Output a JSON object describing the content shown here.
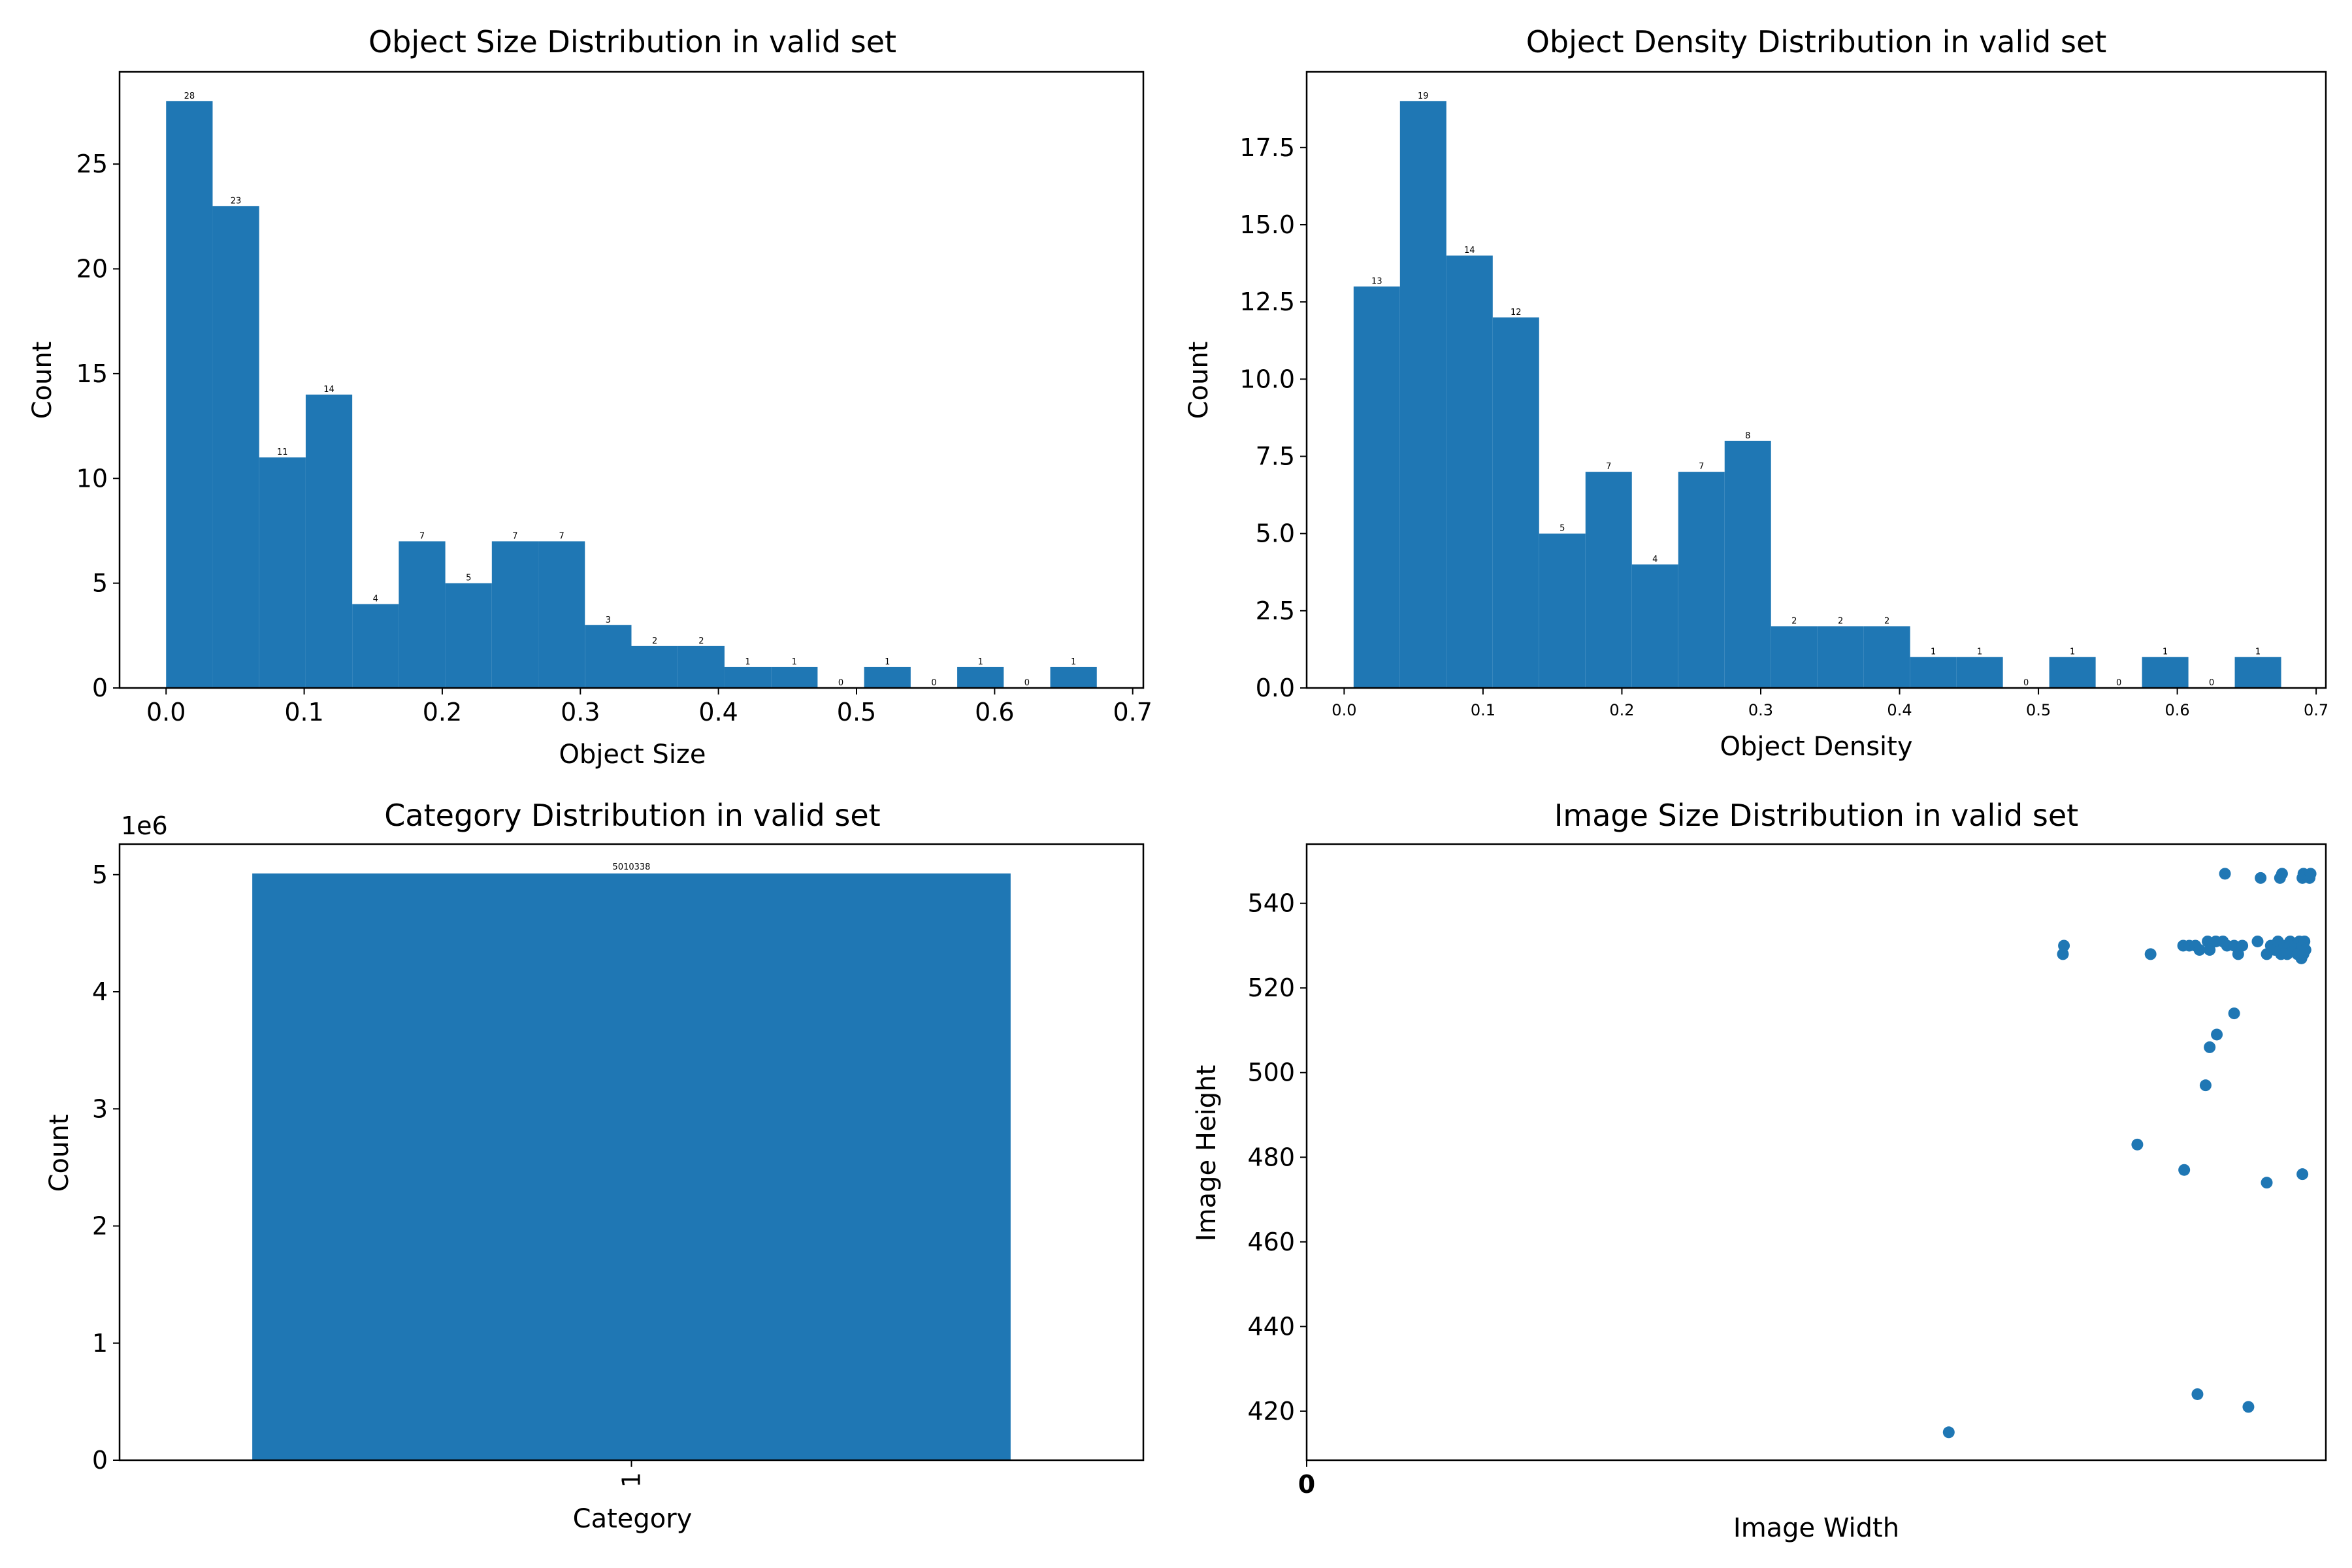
{
  "figure": {
    "background": "#ffffff",
    "bar_color": "#1f77b4"
  },
  "chart_data": [
    {
      "type": "bar",
      "title": "Object Size Distribution in valid set",
      "xlabel": "Object Size",
      "ylabel": "Count",
      "bin_start": 0.0,
      "bin_width": 0.0337,
      "values": [
        28,
        23,
        11,
        14,
        4,
        7,
        5,
        7,
        7,
        3,
        2,
        2,
        1,
        1,
        0,
        1,
        0,
        1,
        0,
        1
      ],
      "data_labels": [
        "28",
        "23",
        "11",
        "14",
        "4",
        "7",
        "5",
        "7",
        "7",
        "3",
        "2",
        "2",
        "1",
        "1",
        "0",
        "1",
        "0",
        "1",
        "0",
        "1"
      ],
      "xlim": [
        -0.0337,
        0.7077
      ],
      "ylim": [
        0,
        29.4
      ],
      "xticks": [
        0.0,
        0.1,
        0.2,
        0.3,
        0.4,
        0.5,
        0.6,
        0.7
      ],
      "xtick_labels": [
        "0.0",
        "0.1",
        "0.2",
        "0.3",
        "0.4",
        "0.5",
        "0.6",
        "0.7"
      ],
      "yticks": [
        0,
        5,
        10,
        15,
        20,
        25
      ],
      "ytick_labels": [
        "0",
        "5",
        "10",
        "15",
        "20",
        "25"
      ],
      "grid": false
    },
    {
      "type": "bar",
      "title": "Object Density Distribution in valid set",
      "xlabel": "Object Density",
      "ylabel": "Count",
      "bin_start": 0.0068,
      "bin_width": 0.0334,
      "values": [
        13,
        19,
        14,
        12,
        5,
        7,
        4,
        7,
        8,
        2,
        2,
        2,
        1,
        1,
        0,
        1,
        0,
        1,
        0,
        1
      ],
      "data_labels": [
        "13",
        "19",
        "14",
        "12",
        "5",
        "7",
        "4",
        "7",
        "8",
        "2",
        "2",
        "2",
        "1",
        "1",
        "0",
        "1",
        "0",
        "1",
        "0",
        "1"
      ],
      "xlim": [
        -0.027,
        0.707
      ],
      "ylim": [
        0,
        19.95
      ],
      "xticks": [
        0.0,
        0.1,
        0.2,
        0.3,
        0.4,
        0.5,
        0.6,
        0.7
      ],
      "xtick_labels": [
        "0.0",
        "0.1",
        "0.2",
        "0.3",
        "0.4",
        "0.5",
        "0.6",
        "0.7"
      ],
      "yticks": [
        0,
        2.5,
        5,
        7.5,
        10,
        12.5,
        15,
        17.5
      ],
      "ytick_labels": [
        "0.0",
        "2.5",
        "5.0",
        "7.5",
        "10.0",
        "12.5",
        "15.0",
        "17.5"
      ],
      "grid": false
    },
    {
      "type": "bar",
      "title": "Category Distribution in valid set",
      "xlabel": "Category",
      "ylabel": "Count",
      "categories": [
        "1"
      ],
      "values": [
        5010338
      ],
      "data_labels": [
        "5010338"
      ],
      "offset_text": "1e6",
      "ylim": [
        0,
        5260854
      ],
      "yticks": [
        0,
        1000000,
        2000000,
        3000000,
        4000000,
        5000000
      ],
      "ytick_labels": [
        "0",
        "1",
        "2",
        "3",
        "4",
        "5"
      ],
      "grid": false
    },
    {
      "type": "scatter",
      "title": "Image Size Distribution in valid set",
      "xlabel": "Image Width",
      "ylabel": "Image Height",
      "xtick_labels": [
        "0"
      ],
      "xlim": [
        0,
        1000
      ],
      "ylim": [
        408.4,
        554
      ],
      "yticks": [
        420,
        440,
        460,
        480,
        500,
        520,
        540
      ],
      "ytick_labels": [
        "420",
        "440",
        "460",
        "480",
        "500",
        "520",
        "540"
      ],
      "points": [
        {
          "x": 630,
          "y": 415
        },
        {
          "x": 742,
          "y": 528
        },
        {
          "x": 743,
          "y": 530
        },
        {
          "x": 828,
          "y": 528
        },
        {
          "x": 815,
          "y": 483
        },
        {
          "x": 861,
          "y": 477
        },
        {
          "x": 874,
          "y": 424
        },
        {
          "x": 924,
          "y": 421
        },
        {
          "x": 882,
          "y": 497
        },
        {
          "x": 886,
          "y": 506
        },
        {
          "x": 893,
          "y": 509
        },
        {
          "x": 910,
          "y": 514
        },
        {
          "x": 942,
          "y": 474
        },
        {
          "x": 977,
          "y": 476
        },
        {
          "x": 901,
          "y": 547
        },
        {
          "x": 936,
          "y": 546
        },
        {
          "x": 955,
          "y": 546
        },
        {
          "x": 957,
          "y": 547
        },
        {
          "x": 977,
          "y": 546
        },
        {
          "x": 978,
          "y": 547
        },
        {
          "x": 984,
          "y": 546
        },
        {
          "x": 985,
          "y": 547
        },
        {
          "x": 860,
          "y": 530
        },
        {
          "x": 866,
          "y": 530
        },
        {
          "x": 872,
          "y": 530
        },
        {
          "x": 876,
          "y": 529
        },
        {
          "x": 884,
          "y": 531
        },
        {
          "x": 886,
          "y": 529
        },
        {
          "x": 892,
          "y": 531
        },
        {
          "x": 899,
          "y": 531
        },
        {
          "x": 903,
          "y": 530
        },
        {
          "x": 910,
          "y": 530
        },
        {
          "x": 914,
          "y": 528
        },
        {
          "x": 918,
          "y": 530
        },
        {
          "x": 933,
          "y": 531
        },
        {
          "x": 942,
          "y": 528
        },
        {
          "x": 946,
          "y": 530
        },
        {
          "x": 950,
          "y": 529
        },
        {
          "x": 953,
          "y": 531
        },
        {
          "x": 956,
          "y": 528
        },
        {
          "x": 959,
          "y": 530
        },
        {
          "x": 962,
          "y": 528
        },
        {
          "x": 965,
          "y": 531
        },
        {
          "x": 968,
          "y": 529
        },
        {
          "x": 970,
          "y": 530
        },
        {
          "x": 972,
          "y": 528
        },
        {
          "x": 974,
          "y": 531
        },
        {
          "x": 976,
          "y": 527
        },
        {
          "x": 977,
          "y": 530
        },
        {
          "x": 978,
          "y": 528
        },
        {
          "x": 979,
          "y": 531
        },
        {
          "x": 980,
          "y": 529
        }
      ],
      "grid": false
    }
  ]
}
